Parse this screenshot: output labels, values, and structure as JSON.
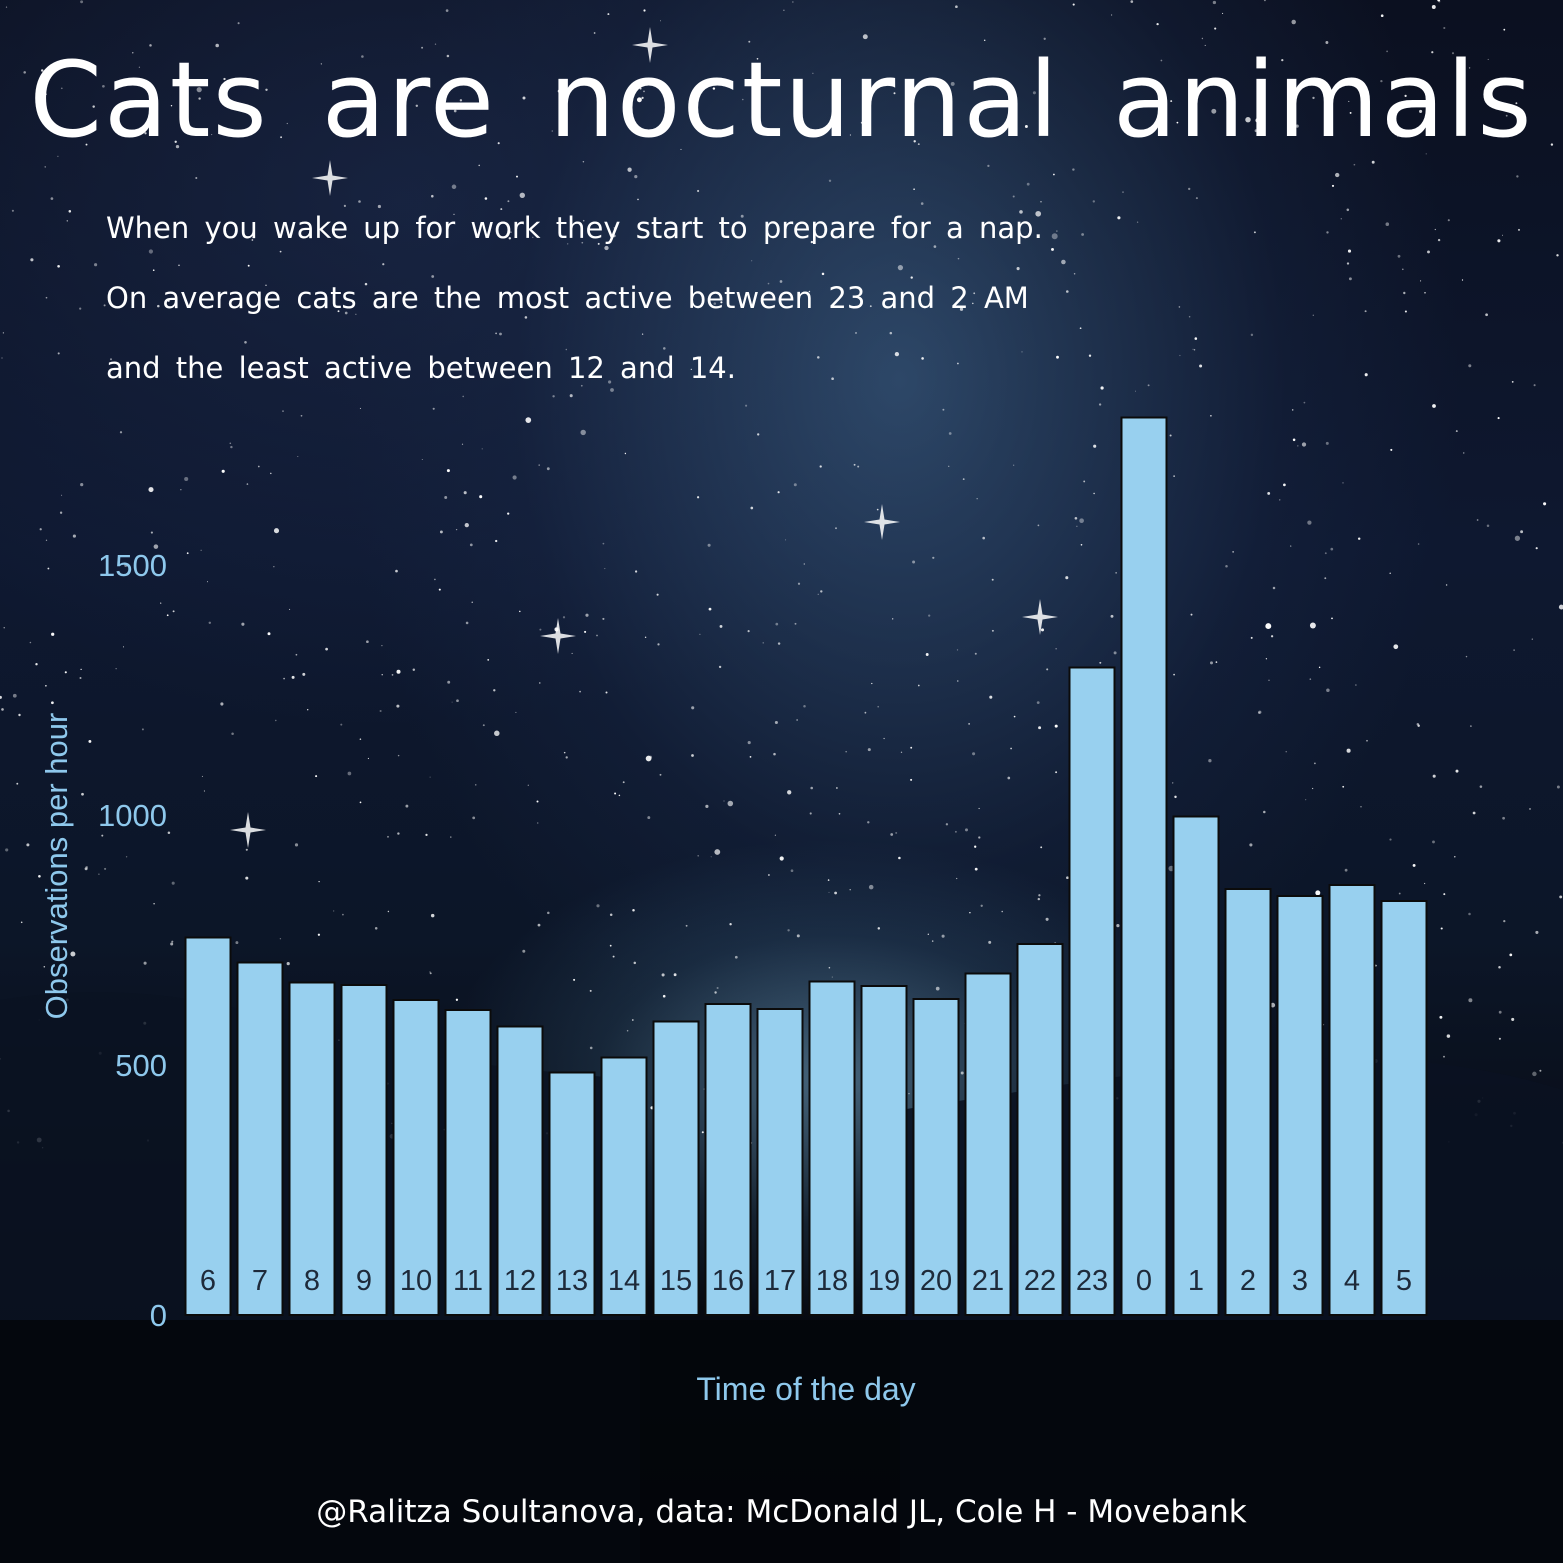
{
  "title": "Cats are nocturnal animals",
  "subtitle": [
    "When you wake up for work they start to prepare for a nap.",
    "On average cats are the most active between 23 and 2 AM",
    "and the least active between 12 and 14."
  ],
  "caption": "@Ralitza Soultanova, data: McDonald JL, Cole H - Movebank",
  "chart_data": {
    "type": "bar",
    "title": "Cats are nocturnal animals",
    "xlabel": "Time of the day",
    "ylabel": "Observations per hour",
    "categories": [
      "6",
      "7",
      "8",
      "9",
      "10",
      "11",
      "12",
      "13",
      "14",
      "15",
      "16",
      "17",
      "18",
      "19",
      "20",
      "21",
      "22",
      "23",
      "0",
      "1",
      "2",
      "3",
      "4",
      "5"
    ],
    "values": [
      755,
      705,
      665,
      660,
      630,
      610,
      577,
      485,
      515,
      587,
      622,
      612,
      667,
      658,
      632,
      683,
      742,
      1295,
      1795,
      997,
      852,
      838,
      860,
      828
    ],
    "ylim": [
      0,
      1800
    ],
    "yticks": [
      0,
      500,
      1000,
      1500
    ],
    "yticklabels": [
      "0",
      "500",
      "1000",
      "1500"
    ],
    "grid": false,
    "legend": "none",
    "category_labels_position": "inside-bottom",
    "colors": {
      "bar_fill": "#98d0ef",
      "bar_stroke": "#0b0b0b",
      "axis_text": "#8ec8ec",
      "category_text": "#1e2a3a"
    }
  }
}
